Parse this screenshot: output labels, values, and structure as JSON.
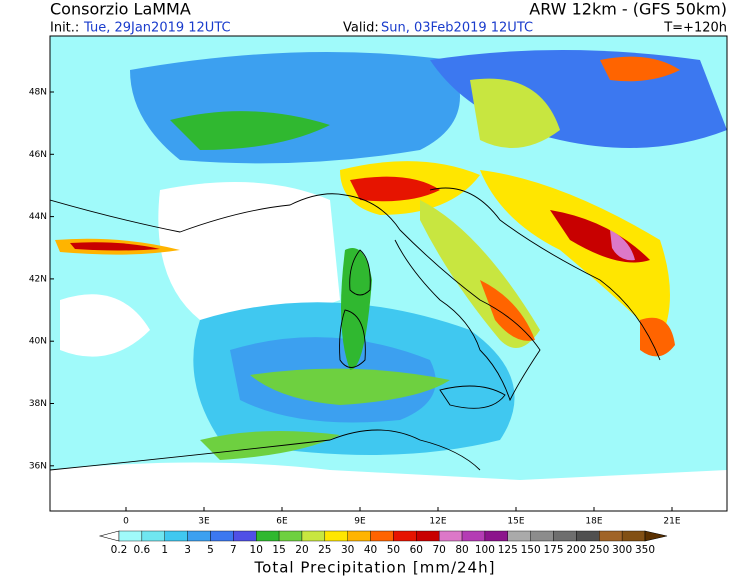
{
  "header": {
    "title": "Consorzio LaMMA",
    "model": "ARW 12km - (GFS 50km)",
    "init_label": "Init.:",
    "init": "Tue, 29Jan2019 12UTC",
    "valid_label": "Valid:",
    "valid": "Sun, 03Feb2019 12UTC",
    "lead": "T=+120h"
  },
  "map": {
    "lat_labels": [
      "48N",
      "46N",
      "44N",
      "42N",
      "40N",
      "38N",
      "36N"
    ],
    "lon_labels": [
      "0",
      "3E",
      "6E",
      "9E",
      "12E",
      "15E",
      "18E",
      "21E"
    ]
  },
  "legend": {
    "title": "Total Precipitation [mm/24h]",
    "thresholds": [
      0.2,
      0.6,
      1,
      3,
      5,
      7,
      10,
      15,
      20,
      25,
      30,
      40,
      50,
      60,
      70,
      80,
      100,
      125,
      150,
      175,
      200,
      250,
      300,
      350
    ],
    "colors": [
      "#ffffff",
      "#a0fafa",
      "#70e6f0",
      "#40c8f0",
      "#3ca0f0",
      "#3c78f0",
      "#5050e6",
      "#30b830",
      "#6ed040",
      "#c8e640",
      "#ffe600",
      "#ffb400",
      "#ff6400",
      "#e61400",
      "#c80000",
      "#dc78c8",
      "#b43cb4",
      "#8c148c",
      "#aaaaaa",
      "#8c8c8c",
      "#6e6e6e",
      "#505050",
      "#a06428",
      "#825014",
      "#5a3000"
    ]
  }
}
